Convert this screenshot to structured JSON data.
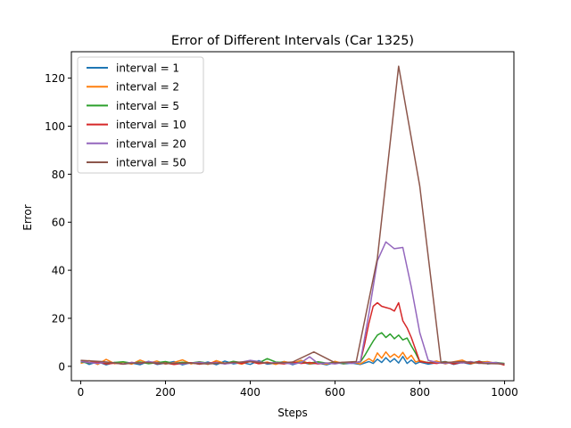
{
  "chart_data": {
    "type": "line",
    "title": "Error of Different Intervals (Car 1325)",
    "xlabel": "Steps",
    "ylabel": "Error",
    "xlim": [
      -22,
      1022
    ],
    "ylim": [
      -6,
      131
    ],
    "xticks": [
      0,
      200,
      400,
      600,
      800,
      1000
    ],
    "yticks": [
      0,
      20,
      40,
      60,
      80,
      100,
      120
    ],
    "grid": false,
    "legend_position": "top-left",
    "series": [
      {
        "name": "interval = 1",
        "color": "#1f77b4",
        "x": [
          0,
          20,
          40,
          60,
          80,
          100,
          120,
          140,
          160,
          180,
          200,
          220,
          240,
          260,
          280,
          300,
          320,
          340,
          360,
          380,
          400,
          420,
          440,
          460,
          480,
          500,
          520,
          540,
          560,
          580,
          600,
          620,
          640,
          660,
          680,
          690,
          700,
          710,
          720,
          730,
          740,
          750,
          760,
          770,
          780,
          790,
          800,
          820,
          840,
          860,
          880,
          900,
          920,
          940,
          960,
          980,
          1000
        ],
        "y": [
          2.5,
          0.8,
          1.9,
          0.6,
          1.6,
          0.9,
          1.4,
          0.7,
          2.1,
          0.8,
          1.3,
          2.0,
          0.6,
          1.5,
          0.9,
          1.8,
          0.7,
          2.2,
          1.0,
          1.6,
          0.8,
          2.4,
          0.9,
          1.3,
          2.0,
          0.7,
          1.8,
          0.9,
          1.4,
          0.6,
          1.6,
          1.0,
          1.3,
          0.8,
          2.0,
          1.2,
          3.0,
          1.6,
          3.6,
          1.8,
          3.2,
          1.4,
          4.1,
          1.2,
          2.6,
          1.0,
          1.8,
          0.9,
          1.5,
          2.0,
          0.8,
          1.6,
          0.9,
          2.2,
          1.0,
          1.3,
          0.8
        ]
      },
      {
        "name": "interval = 2",
        "color": "#ff7f0e",
        "x": [
          0,
          20,
          40,
          60,
          80,
          100,
          120,
          140,
          160,
          180,
          200,
          220,
          240,
          260,
          280,
          300,
          320,
          340,
          360,
          380,
          400,
          420,
          440,
          460,
          480,
          500,
          520,
          540,
          560,
          580,
          600,
          620,
          640,
          660,
          680,
          690,
          700,
          710,
          720,
          730,
          740,
          750,
          760,
          770,
          780,
          790,
          800,
          820,
          840,
          860,
          880,
          900,
          920,
          940,
          960,
          980,
          1000
        ],
        "y": [
          1.2,
          2.4,
          0.8,
          2.9,
          1.1,
          1.8,
          0.9,
          2.6,
          1.3,
          2.2,
          0.9,
          1.6,
          2.7,
          1.0,
          1.9,
          0.8,
          2.4,
          1.2,
          1.7,
          0.9,
          2.3,
          1.1,
          1.8,
          0.8,
          2.0,
          1.3,
          2.5,
          1.0,
          1.6,
          0.9,
          2.1,
          1.1,
          1.7,
          1.0,
          3.2,
          2.0,
          5.6,
          3.4,
          6.0,
          3.8,
          5.1,
          3.6,
          5.8,
          3.0,
          4.6,
          1.8,
          2.4,
          1.5,
          2.2,
          1.0,
          1.9,
          2.6,
          1.1,
          1.7,
          2.0,
          1.2,
          0.9
        ]
      },
      {
        "name": "interval = 5",
        "color": "#2ca02c",
        "x": [
          0,
          20,
          40,
          60,
          80,
          100,
          120,
          140,
          160,
          180,
          200,
          220,
          240,
          260,
          280,
          300,
          320,
          340,
          360,
          380,
          400,
          420,
          440,
          460,
          480,
          500,
          520,
          540,
          560,
          580,
          600,
          620,
          640,
          660,
          670,
          680,
          690,
          700,
          710,
          720,
          730,
          740,
          750,
          760,
          770,
          780,
          790,
          800,
          820,
          840,
          860,
          880,
          900,
          920,
          940,
          960,
          980,
          1000
        ],
        "y": [
          1.8,
          1.4,
          2.0,
          1.2,
          1.6,
          1.9,
          1.3,
          1.8,
          1.1,
          1.5,
          2.0,
          1.2,
          1.7,
          1.4,
          1.9,
          1.3,
          1.6,
          1.2,
          2.1,
          1.5,
          2.3,
          1.4,
          3.2,
          1.8,
          1.5,
          1.3,
          1.7,
          1.4,
          1.9,
          1.3,
          1.6,
          1.2,
          1.5,
          1.8,
          4.5,
          7.5,
          10.5,
          13.0,
          14.0,
          12.0,
          13.5,
          11.5,
          13.0,
          11.0,
          11.8,
          8.5,
          5.5,
          2.0,
          1.6,
          1.4,
          1.9,
          1.3,
          1.7,
          1.5,
          2.0,
          1.4,
          1.6,
          1.2
        ]
      },
      {
        "name": "interval = 10",
        "color": "#d62728",
        "x": [
          0,
          20,
          40,
          60,
          80,
          100,
          120,
          140,
          160,
          180,
          200,
          220,
          240,
          260,
          280,
          300,
          320,
          340,
          360,
          380,
          400,
          420,
          440,
          460,
          480,
          500,
          520,
          540,
          560,
          580,
          600,
          620,
          640,
          660,
          670,
          680,
          690,
          700,
          710,
          720,
          730,
          740,
          750,
          760,
          770,
          780,
          790,
          800,
          820,
          840,
          860,
          880,
          900,
          920,
          940,
          960,
          980,
          1000
        ],
        "y": [
          2.2,
          1.5,
          1.8,
          1.0,
          1.3,
          0.9,
          1.6,
          1.2,
          1.9,
          1.1,
          1.4,
          0.8,
          1.2,
          1.5,
          0.9,
          1.3,
          1.7,
          1.0,
          1.6,
          1.2,
          2.0,
          1.1,
          1.5,
          1.3,
          1.0,
          1.8,
          1.2,
          1.6,
          1.0,
          1.4,
          1.2,
          1.7,
          1.3,
          2.0,
          9.5,
          18.0,
          25.0,
          26.5,
          25.0,
          24.5,
          24.0,
          23.0,
          26.5,
          19.0,
          16.0,
          12.0,
          7.0,
          2.0,
          1.5,
          1.2,
          1.8,
          1.0,
          1.6,
          1.3,
          2.0,
          1.1,
          1.5,
          0.5
        ]
      },
      {
        "name": "interval = 20",
        "color": "#9467bd",
        "x": [
          0,
          20,
          40,
          60,
          80,
          100,
          120,
          140,
          160,
          180,
          200,
          220,
          240,
          260,
          280,
          300,
          320,
          340,
          360,
          380,
          400,
          420,
          440,
          460,
          480,
          500,
          520,
          540,
          560,
          580,
          600,
          620,
          640,
          660,
          680,
          700,
          720,
          740,
          760,
          780,
          800,
          820,
          840,
          860,
          880,
          900,
          920,
          940,
          960,
          980,
          1000
        ],
        "y": [
          2.0,
          1.6,
          1.2,
          1.8,
          1.4,
          1.0,
          1.6,
          1.3,
          2.0,
          1.5,
          1.1,
          1.4,
          1.0,
          1.3,
          1.7,
          1.2,
          1.5,
          1.0,
          1.4,
          1.8,
          2.5,
          2.0,
          1.2,
          1.6,
          1.3,
          1.0,
          1.5,
          4.0,
          1.2,
          1.4,
          1.0,
          1.6,
          1.2,
          2.0,
          22.0,
          44.0,
          51.8,
          49.0,
          49.5,
          33.0,
          14.0,
          2.5,
          1.6,
          1.2,
          1.8,
          1.4,
          2.0,
          1.2,
          1.6,
          1.5,
          1.0
        ]
      },
      {
        "name": "interval = 50",
        "color": "#8c564b",
        "x": [
          0,
          50,
          100,
          150,
          200,
          250,
          300,
          350,
          400,
          450,
          500,
          550,
          600,
          650,
          700,
          750,
          800,
          850,
          900,
          950,
          1000
        ],
        "y": [
          2.5,
          2.0,
          1.0,
          1.6,
          1.2,
          1.4,
          1.0,
          1.5,
          2.0,
          1.2,
          1.8,
          6.0,
          1.5,
          2.0,
          45.0,
          125.0,
          75.0,
          1.5,
          2.0,
          1.2,
          1.0
        ]
      }
    ]
  }
}
